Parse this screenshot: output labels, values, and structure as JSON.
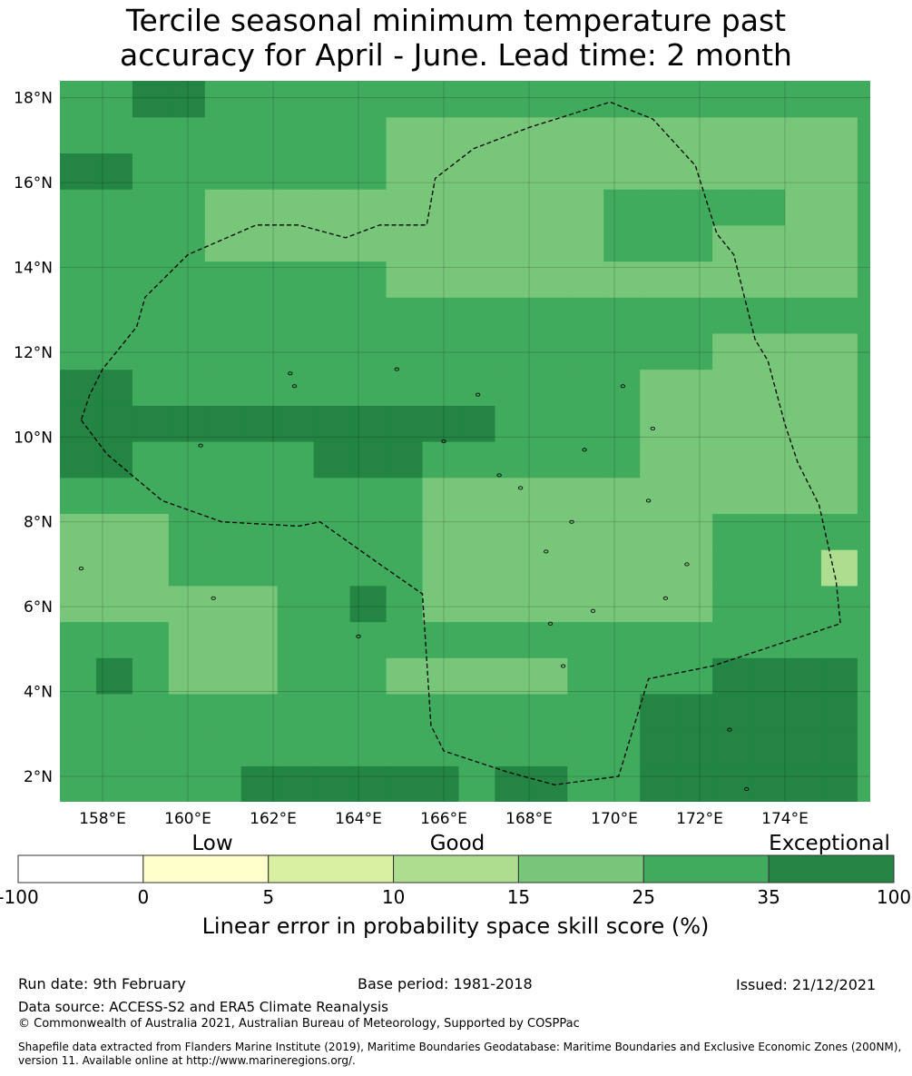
{
  "title": {
    "line1": "Tercile seasonal minimum temperature past",
    "line2": "accuracy for April - June. Lead time: 2 month"
  },
  "map": {
    "lon_range": [
      157.0,
      176.0
    ],
    "lat_range": [
      1.4,
      18.4
    ],
    "grid_cell_deg": 0.85,
    "x_ticks": [
      "158°E",
      "160°E",
      "162°E",
      "164°E",
      "166°E",
      "168°E",
      "170°E",
      "172°E",
      "174°E"
    ],
    "y_ticks": [
      "2°N",
      "4°N",
      "6°N",
      "8°N",
      "10°N",
      "12°N",
      "14°N",
      "16°N",
      "18°N"
    ],
    "eez_boundary": [
      [
        157.5,
        10.4
      ],
      [
        158.1,
        9.6
      ],
      [
        159.4,
        8.5
      ],
      [
        160.8,
        8.0
      ],
      [
        162.6,
        7.9
      ],
      [
        163.1,
        8.0
      ],
      [
        164.5,
        7.0
      ],
      [
        165.5,
        6.3
      ],
      [
        165.7,
        3.2
      ],
      [
        166.0,
        2.6
      ],
      [
        167.5,
        2.1
      ],
      [
        168.6,
        1.8
      ],
      [
        170.1,
        2.0
      ],
      [
        170.8,
        4.3
      ],
      [
        172.3,
        4.6
      ],
      [
        175.3,
        5.6
      ],
      [
        175.2,
        6.6
      ],
      [
        174.8,
        8.4
      ],
      [
        174.3,
        9.4
      ],
      [
        174.0,
        10.3
      ],
      [
        173.6,
        11.8
      ],
      [
        173.3,
        12.3
      ],
      [
        172.8,
        14.3
      ],
      [
        172.4,
        14.8
      ],
      [
        171.9,
        16.4
      ],
      [
        170.9,
        17.5
      ],
      [
        169.9,
        17.9
      ],
      [
        168.0,
        17.3
      ],
      [
        166.7,
        16.8
      ],
      [
        165.8,
        16.1
      ],
      [
        165.6,
        15.0
      ],
      [
        164.5,
        15.0
      ],
      [
        163.7,
        14.7
      ],
      [
        162.6,
        15.0
      ],
      [
        161.6,
        15.0
      ],
      [
        160.0,
        14.3
      ],
      [
        159.0,
        13.3
      ],
      [
        158.8,
        12.6
      ],
      [
        158.0,
        11.6
      ],
      [
        157.7,
        11.0
      ],
      [
        157.5,
        10.4
      ]
    ],
    "islands": [
      [
        157.5,
        6.9
      ],
      [
        160.6,
        6.2
      ],
      [
        162.4,
        11.5
      ],
      [
        162.5,
        11.2
      ],
      [
        164.9,
        11.6
      ],
      [
        166.0,
        9.9
      ],
      [
        166.8,
        11.0
      ],
      [
        167.3,
        9.1
      ],
      [
        168.4,
        7.3
      ],
      [
        168.5,
        5.6
      ],
      [
        169.3,
        9.7
      ],
      [
        169.0,
        8.0
      ],
      [
        169.5,
        5.9
      ],
      [
        170.2,
        11.2
      ],
      [
        170.9,
        10.2
      ],
      [
        171.2,
        6.2
      ],
      [
        171.7,
        7.0
      ],
      [
        172.7,
        3.1
      ],
      [
        173.1,
        1.7
      ],
      [
        164.0,
        5.3
      ],
      [
        160.3,
        9.8
      ],
      [
        167.8,
        8.8
      ],
      [
        168.8,
        4.6
      ],
      [
        170.8,
        8.5
      ]
    ]
  },
  "colorbar": {
    "category_labels": [
      "Low",
      "Good",
      "Exceptional"
    ],
    "bounds": [
      "-100",
      "0",
      "5",
      "10",
      "15",
      "25",
      "35",
      "100"
    ],
    "colors": [
      "#ffffff",
      "#ffffcc",
      "#d9f0a3",
      "#addd8e",
      "#78c679",
      "#41ab5d",
      "#238443"
    ],
    "axis_label": "Linear error in probability space skill score (%)"
  },
  "footer": {
    "run_date": "Run date: 9th February",
    "base_period": "Base period: 1981-2018",
    "issued": "Issued: 21/12/2021",
    "data_source": "Data source: ACCESS-S2 and ERA5 Climate Reanalysis",
    "copyright": "© Commonwealth of Australia 2021, Australian Bureau of Meteorology, Supported by COSPPac",
    "shapefile": "Shapefile data extracted from Flanders Marine Institute (2019), Maritime Boundaries Geodatabase: Maritime Boundaries and Exclusive Economic Zones (200NM), version 11. Available online at http://www.marineregions.org/."
  },
  "colors": {
    "skill_15_25": "#78c679",
    "skill_25_35": "#41ab5d",
    "skill_35_100": "#238443",
    "skill_10_15": "#addd8e"
  }
}
